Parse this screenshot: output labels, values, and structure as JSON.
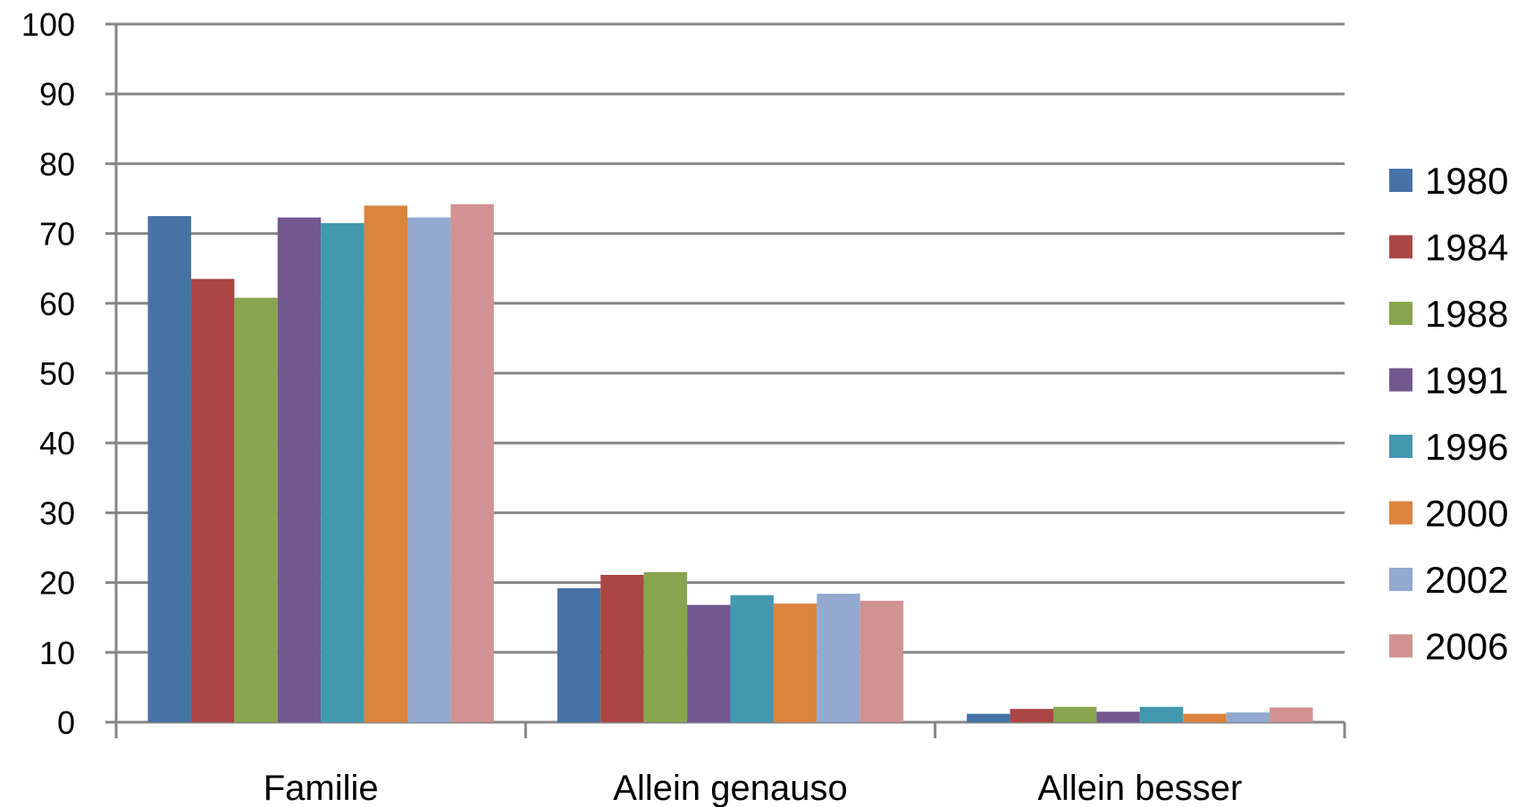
{
  "chart_data": {
    "type": "bar",
    "title": "",
    "xlabel": "",
    "ylabel": "",
    "ylim": [
      0,
      100
    ],
    "yticks": [
      0,
      10,
      20,
      30,
      40,
      50,
      60,
      70,
      80,
      90,
      100
    ],
    "grid": true,
    "legend_position": "right",
    "categories": [
      "Familie",
      "Allein genauso",
      "Allein besser"
    ],
    "series": [
      {
        "name": "1980",
        "color": "#4572A7",
        "values": [
          72.5,
          19.2,
          1.2
        ]
      },
      {
        "name": "1984",
        "color": "#AA4643",
        "values": [
          63.5,
          21.1,
          1.9
        ]
      },
      {
        "name": "1988",
        "color": "#89A54E",
        "values": [
          60.8,
          21.5,
          2.2
        ]
      },
      {
        "name": "1991",
        "color": "#71588F",
        "values": [
          72.3,
          16.8,
          1.5
        ]
      },
      {
        "name": "1996",
        "color": "#4198AF",
        "values": [
          71.5,
          18.2,
          2.2
        ]
      },
      {
        "name": "2000",
        "color": "#DB843D",
        "values": [
          74.0,
          17.0,
          1.2
        ]
      },
      {
        "name": "2002",
        "color": "#93A9CF",
        "values": [
          72.3,
          18.4,
          1.4
        ]
      },
      {
        "name": "2006",
        "color": "#D19392",
        "values": [
          74.2,
          17.4,
          2.1
        ]
      }
    ]
  }
}
